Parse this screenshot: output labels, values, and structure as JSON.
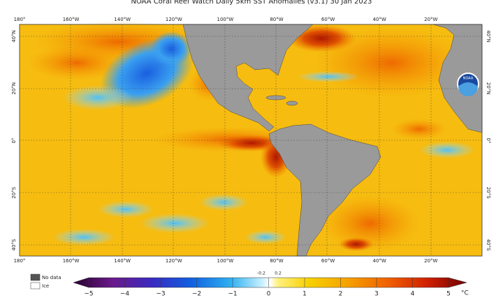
{
  "title": "NOAA Coral Reef Watch Daily 5km SST Anomalies (v3.1) 30 Jan 2023",
  "lon_labels": [
    "180°",
    "160°W",
    "140°W",
    "120°W",
    "100°W",
    "80°W",
    "60°W",
    "40°W",
    "20°W"
  ],
  "lat_labels_left": [
    "40°N",
    "20°N",
    "0°",
    "20°S",
    "40°S"
  ],
  "lat_labels_right": [
    "40°N",
    "20°N",
    "0°",
    "20°S",
    "40°S"
  ],
  "legend": {
    "no_data": "No data",
    "ice": "Ice"
  },
  "colorbar": {
    "ticks": [
      "−5",
      "−4",
      "−3",
      "−2",
      "−1",
      "0",
      "1",
      "2",
      "3",
      "4",
      "5"
    ],
    "minor": [
      "-0.2",
      "0.2"
    ],
    "unit": "°C"
  },
  "logo": "NOAA"
}
